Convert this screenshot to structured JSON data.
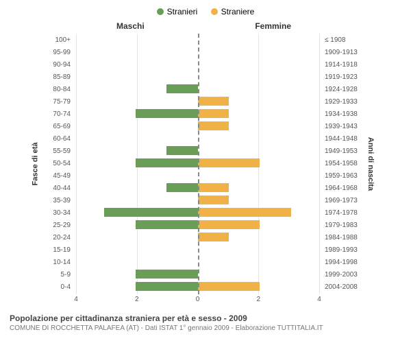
{
  "legend": {
    "male": {
      "label": "Stranieri",
      "color": "#6a9e58"
    },
    "female": {
      "label": "Straniere",
      "color": "#f0b146"
    }
  },
  "headers": {
    "left": "Maschi",
    "right": "Femmine"
  },
  "axis_titles": {
    "left": "Fasce di età",
    "right": "Anni di nascita"
  },
  "x_axis": {
    "max": 4,
    "ticks": [
      4,
      2,
      0,
      2,
      4
    ]
  },
  "colors": {
    "male_bar": "#6a9e58",
    "female_bar": "#f0b146",
    "grid": "#e5e5e5",
    "center": "#888888",
    "background": "#ffffff"
  },
  "rows": [
    {
      "age": "100+",
      "birth": "≤ 1908",
      "m": 0,
      "f": 0
    },
    {
      "age": "95-99",
      "birth": "1909-1913",
      "m": 0,
      "f": 0
    },
    {
      "age": "90-94",
      "birth": "1914-1918",
      "m": 0,
      "f": 0
    },
    {
      "age": "85-89",
      "birth": "1919-1923",
      "m": 0,
      "f": 0
    },
    {
      "age": "80-84",
      "birth": "1924-1928",
      "m": 1,
      "f": 0
    },
    {
      "age": "75-79",
      "birth": "1929-1933",
      "m": 0,
      "f": 1
    },
    {
      "age": "70-74",
      "birth": "1934-1938",
      "m": 2,
      "f": 1
    },
    {
      "age": "65-69",
      "birth": "1939-1943",
      "m": 0,
      "f": 1
    },
    {
      "age": "60-64",
      "birth": "1944-1948",
      "m": 0,
      "f": 0
    },
    {
      "age": "55-59",
      "birth": "1949-1953",
      "m": 1,
      "f": 0
    },
    {
      "age": "50-54",
      "birth": "1954-1958",
      "m": 2,
      "f": 2
    },
    {
      "age": "45-49",
      "birth": "1959-1963",
      "m": 0,
      "f": 0
    },
    {
      "age": "40-44",
      "birth": "1964-1968",
      "m": 1,
      "f": 1
    },
    {
      "age": "35-39",
      "birth": "1969-1973",
      "m": 0,
      "f": 1
    },
    {
      "age": "30-34",
      "birth": "1974-1978",
      "m": 3,
      "f": 3
    },
    {
      "age": "25-29",
      "birth": "1979-1983",
      "m": 2,
      "f": 2
    },
    {
      "age": "20-24",
      "birth": "1984-1988",
      "m": 0,
      "f": 1
    },
    {
      "age": "15-19",
      "birth": "1989-1993",
      "m": 0,
      "f": 0
    },
    {
      "age": "10-14",
      "birth": "1994-1998",
      "m": 0,
      "f": 0
    },
    {
      "age": "5-9",
      "birth": "1999-2003",
      "m": 2,
      "f": 0
    },
    {
      "age": "0-4",
      "birth": "2004-2008",
      "m": 2,
      "f": 2
    }
  ],
  "caption": {
    "title": "Popolazione per cittadinanza straniera per età e sesso - 2009",
    "subtitle": "COMUNE DI ROCCHETTA PALAFEA (AT) - Dati ISTAT 1° gennaio 2009 - Elaborazione TUTTITALIA.IT"
  }
}
